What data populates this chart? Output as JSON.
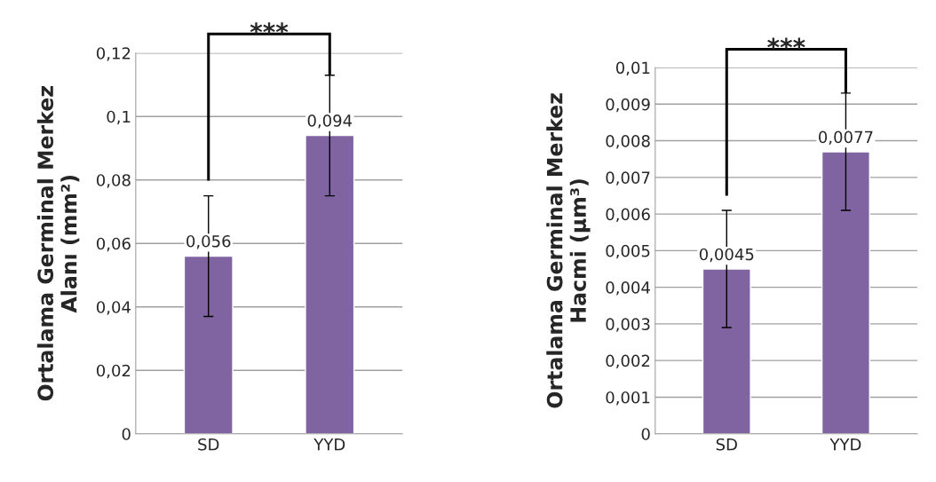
{
  "chart_data": [
    {
      "type": "bar",
      "categories": [
        "SD",
        "YYD"
      ],
      "ylabel": "Ortalama Germinal Merkez\nAlanı (mm²)",
      "color": "#8064a2",
      "values": [
        0.056,
        0.094
      ],
      "errors": [
        0.019,
        0.019
      ],
      "value_labels": [
        "0,056",
        "0,094"
      ],
      "ylim": [
        0,
        0.12
      ],
      "yticks": [
        {
          "value": 0,
          "label": "0"
        },
        {
          "value": 0.02,
          "label": "0,02"
        },
        {
          "value": 0.04,
          "label": "0,04"
        },
        {
          "value": 0.06,
          "label": "0,06"
        },
        {
          "value": 0.08,
          "label": "0,08"
        },
        {
          "value": 0.1,
          "label": "0,1"
        },
        {
          "value": 0.12,
          "label": "0,12"
        }
      ],
      "grid": "y",
      "annotations": [
        "***"
      ]
    },
    {
      "type": "bar",
      "categories": [
        "SD",
        "YYD"
      ],
      "ylabel": "Ortalama Germinal Merkez\nHacmi (µm³)",
      "color": "#8064a2",
      "values": [
        0.0045,
        0.0077
      ],
      "errors": [
        0.0016,
        0.0016
      ],
      "value_labels": [
        "0,0045",
        "0,0077"
      ],
      "ylim": [
        0,
        0.01
      ],
      "yticks": [
        {
          "value": 0,
          "label": "0"
        },
        {
          "value": 0.001,
          "label": "0,001"
        },
        {
          "value": 0.002,
          "label": "0,002"
        },
        {
          "value": 0.003,
          "label": "0,003"
        },
        {
          "value": 0.004,
          "label": "0,004"
        },
        {
          "value": 0.005,
          "label": "0,005"
        },
        {
          "value": 0.006,
          "label": "0,006"
        },
        {
          "value": 0.007,
          "label": "0,007"
        },
        {
          "value": 0.008,
          "label": "0,008"
        },
        {
          "value": 0.009,
          "label": "0,009"
        },
        {
          "value": 0.01,
          "label": "0,01"
        }
      ],
      "grid": "y",
      "annotations": [
        "***"
      ]
    }
  ]
}
